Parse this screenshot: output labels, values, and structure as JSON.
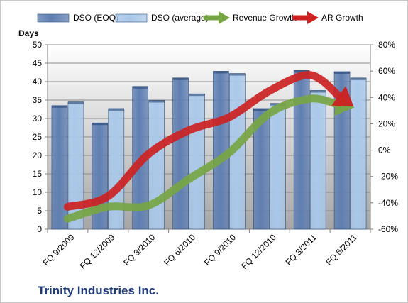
{
  "chart_data": {
    "type": "bar",
    "title": "",
    "categories": [
      "FQ 9/2009",
      "FQ 12/2009",
      "FQ 3/2010",
      "FQ 6/2010",
      "FQ 9/2010",
      "FQ 12/2010",
      "FQ 3/2011",
      "FQ 6/2011"
    ],
    "ylabel": "Days",
    "ylim": [
      0,
      50
    ],
    "yticks": [
      "0",
      "5",
      "10",
      "15",
      "20",
      "25",
      "30",
      "35",
      "40",
      "45",
      "50"
    ],
    "y2lim": [
      -60,
      80
    ],
    "y2ticks": [
      "-60%",
      "-40%",
      "-20%",
      "0%",
      "20%",
      "40%",
      "60%",
      "80%"
    ],
    "grid": true,
    "legend_position": "top",
    "series": [
      {
        "name": "DSO (EOQ)",
        "kind": "bar",
        "axis": "left",
        "color": "#5f7fb2",
        "values": [
          33.5,
          28.8,
          38.7,
          41.0,
          42.8,
          32.7,
          43.0,
          42.7
        ]
      },
      {
        "name": "DSO (average)",
        "kind": "bar",
        "axis": "left",
        "color": "#a9c8ea",
        "values": [
          34.5,
          32.7,
          34.9,
          36.7,
          42.2,
          34.1,
          37.6,
          41.0
        ]
      },
      {
        "name": "Revenue Growth",
        "kind": "arrow-line",
        "axis": "right",
        "color": "#77a544",
        "values": [
          -52,
          -43,
          -42,
          -22,
          -2,
          28,
          39,
          33
        ]
      },
      {
        "name": "AR Growth",
        "kind": "arrow-line",
        "axis": "right",
        "color": "#cc2222",
        "values": [
          -43,
          -35,
          -3,
          15,
          25,
          45,
          57,
          35
        ]
      }
    ]
  },
  "footer": {
    "company_name": "Trinity Industries Inc."
  }
}
